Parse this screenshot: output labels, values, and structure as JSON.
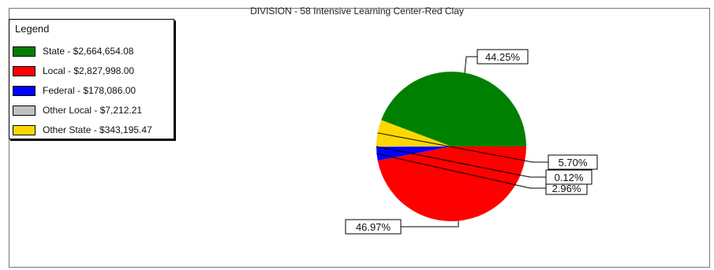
{
  "chart_data": {
    "type": "pie",
    "title": "DIVISION - 58  Intensive Learning Center-Red Clay",
    "legend_title": "Legend",
    "legend_position": "top-left",
    "slices": [
      {
        "legend": "State - $2,664,654.08",
        "value": 2664654.08,
        "pct_label": "44.25%",
        "color": "#008000"
      },
      {
        "legend": "Local - $2,827,998.00",
        "value": 2827998.0,
        "pct_label": "46.97%",
        "color": "#ff0000"
      },
      {
        "legend": "Federal - $178,086.00",
        "value": 178086.0,
        "pct_label": "2.96%",
        "color": "#0000ff"
      },
      {
        "legend": "Other Local - $7,212.21",
        "value": 7212.21,
        "pct_label": "0.12%",
        "color": "#c0c0c0"
      },
      {
        "legend": "Other State - $343,195.47",
        "value": 343195.47,
        "pct_label": "5.70%",
        "color": "#ffd700"
      }
    ]
  }
}
